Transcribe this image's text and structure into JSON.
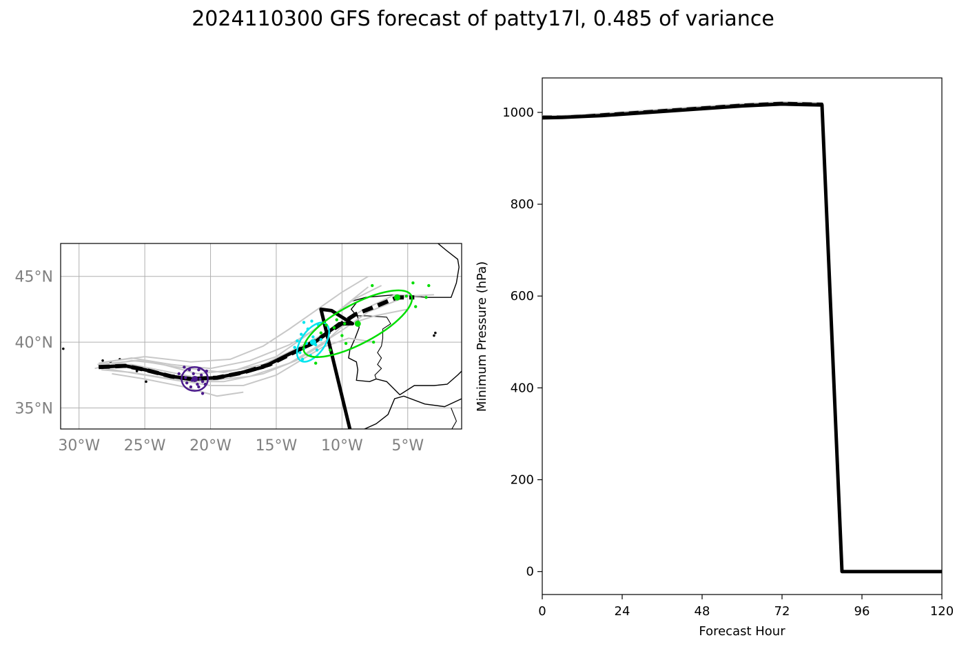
{
  "figure": {
    "title": "2024110300 GFS forecast of patty17l, 0.485 of variance"
  },
  "chart_data": [
    {
      "type": "map",
      "panel": "track",
      "lon_range": [
        -31.4,
        -0.9
      ],
      "lat_range": [
        33.4,
        47.5
      ],
      "x_ticks": [
        -30,
        -25,
        -20,
        -15,
        -10,
        -5
      ],
      "x_tick_labels": [
        "30°W",
        "25°W",
        "20°W",
        "15°W",
        "10°W",
        "5°W"
      ],
      "y_ticks": [
        35,
        40,
        45
      ],
      "y_tick_labels": [
        "35°N",
        "40°N",
        "45°N"
      ],
      "grid": true,
      "colors": {
        "ensemble": "#c8c8c8",
        "track": "#000000",
        "t1": "#4b1a8c",
        "t2": "#00e5ee",
        "t3": "#00dd00",
        "coast": "#000000"
      },
      "mean_track": [
        [
          -28.5,
          38.1
        ],
        [
          -26.5,
          38.2
        ],
        [
          -25,
          37.9
        ],
        [
          -23,
          37.4
        ],
        [
          -21.5,
          37.2
        ],
        [
          -19.5,
          37.3
        ],
        [
          -17.5,
          37.7
        ],
        [
          -15.5,
          38.3
        ],
        [
          -13.5,
          39.3
        ],
        [
          -12,
          40.1
        ],
        [
          -10.5,
          41.1
        ],
        [
          -9,
          42.1
        ],
        [
          -7.5,
          42.7
        ],
        [
          -6.3,
          43.2
        ],
        [
          -5.8,
          43.4
        ],
        [
          -4.5,
          43.4
        ]
      ],
      "deterministic_track": [
        [
          -28.5,
          38.1
        ],
        [
          -26.5,
          38.2
        ],
        [
          -25,
          37.9
        ],
        [
          -23,
          37.4
        ],
        [
          -21.5,
          37.2
        ],
        [
          -19.5,
          37.3
        ],
        [
          -18,
          37.6
        ],
        [
          -16,
          38.1
        ],
        [
          -14,
          39.1
        ],
        [
          -12.2,
          39.9
        ],
        [
          -11,
          40.8
        ],
        [
          -10.2,
          41.4
        ],
        [
          -9.2,
          41.4
        ],
        [
          -10.8,
          42.4
        ],
        [
          -11.6,
          42.5
        ],
        [
          -9.4,
          33.4
        ]
      ],
      "ensemble_tracks": [
        [
          [
            -28.8,
            38.0
          ],
          [
            -26,
            38.6
          ],
          [
            -24,
            38.4
          ],
          [
            -21,
            37.6
          ],
          [
            -18,
            37.9
          ],
          [
            -15,
            38.9
          ],
          [
            -13,
            40.3
          ],
          [
            -11,
            41.8
          ],
          [
            -9,
            43.3
          ],
          [
            -7,
            44.3
          ]
        ],
        [
          [
            -28.5,
            38.2
          ],
          [
            -26,
            38.3
          ],
          [
            -23,
            37.7
          ],
          [
            -20,
            37.1
          ],
          [
            -17,
            37.4
          ],
          [
            -14,
            38.4
          ],
          [
            -12,
            39.6
          ],
          [
            -10,
            40.9
          ],
          [
            -8,
            42.3
          ],
          [
            -5,
            43.5
          ],
          [
            -3,
            43.6
          ]
        ],
        [
          [
            -28,
            38.0
          ],
          [
            -25,
            37.5
          ],
          [
            -22,
            37.0
          ],
          [
            -19,
            37.0
          ],
          [
            -16,
            37.6
          ],
          [
            -13.5,
            38.6
          ],
          [
            -11.5,
            39.8
          ],
          [
            -10,
            41.2
          ],
          [
            -7.5,
            42.0
          ],
          [
            -5,
            42.5
          ]
        ],
        [
          [
            -28.5,
            38.4
          ],
          [
            -26,
            38.8
          ],
          [
            -23,
            38.3
          ],
          [
            -20,
            38.0
          ],
          [
            -17,
            38.6
          ],
          [
            -14,
            39.8
          ],
          [
            -12,
            41.0
          ],
          [
            -10,
            42.6
          ],
          [
            -8,
            44.2
          ]
        ],
        [
          [
            -28.3,
            37.9
          ],
          [
            -26,
            37.7
          ],
          [
            -23,
            37.2
          ],
          [
            -20,
            36.7
          ],
          [
            -17.5,
            36.7
          ],
          [
            -15,
            37.5
          ],
          [
            -13,
            38.7
          ],
          [
            -11.5,
            39.6
          ],
          [
            -9.5,
            40.3
          ],
          [
            -7.5,
            40.0
          ]
        ],
        [
          [
            -28.6,
            38.3
          ],
          [
            -25.5,
            38.6
          ],
          [
            -22.5,
            38.1
          ],
          [
            -19,
            37.7
          ],
          [
            -16,
            38.3
          ],
          [
            -13.5,
            39.5
          ],
          [
            -11,
            40.8
          ],
          [
            -8.5,
            42.4
          ],
          [
            -6,
            43.6
          ],
          [
            -4,
            43.5
          ]
        ],
        [
          [
            -27.5,
            37.6
          ],
          [
            -25,
            37.2
          ],
          [
            -22,
            36.6
          ],
          [
            -19.5,
            35.9
          ],
          [
            -17.5,
            36.2
          ]
        ],
        [
          [
            -28,
            38.5
          ],
          [
            -25,
            38.9
          ],
          [
            -21.5,
            38.5
          ],
          [
            -18.5,
            38.7
          ],
          [
            -16,
            39.7
          ],
          [
            -14,
            41.0
          ],
          [
            -12,
            42.4
          ],
          [
            -10,
            43.8
          ],
          [
            -8,
            45.0
          ]
        ]
      ],
      "markers": [
        {
          "lon": -21.2,
          "lat": 37.2,
          "color": "t1",
          "ellipse": {
            "rx": 1.0,
            "ry": 0.9,
            "rot": 0
          },
          "scatter": [
            [
              -22.0,
              38.1
            ],
            [
              -21.6,
              37.9
            ],
            [
              -20.9,
              37.9
            ],
            [
              -20.3,
              37.8
            ],
            [
              -22.4,
              37.6
            ],
            [
              -21.3,
              37.6
            ],
            [
              -20.7,
              37.5
            ],
            [
              -21.9,
              37.3
            ],
            [
              -21.4,
              37.1
            ],
            [
              -20.6,
              37.0
            ],
            [
              -21.8,
              36.9
            ],
            [
              -21.0,
              36.8
            ],
            [
              -20.4,
              36.8
            ],
            [
              -21.5,
              36.6
            ],
            [
              -20.9,
              36.6
            ],
            [
              -20.6,
              36.1
            ],
            [
              -21.1,
              37.3
            ],
            [
              -20.8,
              37.2
            ]
          ]
        },
        {
          "lon": -12.2,
          "lat": 40.0,
          "color": "t2",
          "ellipse": {
            "rx": 1.7,
            "ry": 0.9,
            "rot": 55
          },
          "scatter": [
            [
              -12.9,
              41.5
            ],
            [
              -12.3,
              41.6
            ],
            [
              -11.8,
              41.3
            ],
            [
              -12.6,
              41.0
            ],
            [
              -13.1,
              40.6
            ],
            [
              -12.2,
              40.4
            ],
            [
              -11.6,
              40.2
            ],
            [
              -13.4,
              40.1
            ],
            [
              -12.7,
              39.9
            ],
            [
              -12.0,
              39.8
            ],
            [
              -13.6,
              39.6
            ],
            [
              -12.9,
              39.5
            ],
            [
              -11.9,
              39.4
            ],
            [
              -13.2,
              39.2
            ],
            [
              -12.4,
              39.0
            ],
            [
              -11.9,
              38.9
            ],
            [
              -13.0,
              38.7
            ]
          ]
        },
        {
          "lon": -8.8,
          "lat": 41.4,
          "color": "t3",
          "ellipse": {
            "rx": 4.6,
            "ry": 1.5,
            "rot": 28
          },
          "scatter": [
            [
              -7.7,
              44.3
            ],
            [
              -4.6,
              44.5
            ],
            [
              -3.4,
              44.3
            ],
            [
              -5.1,
              43.5
            ],
            [
              -3.6,
              43.4
            ],
            [
              -4.4,
              42.7
            ],
            [
              -10.4,
              41.7
            ],
            [
              -9.8,
              41.4
            ],
            [
              -11.2,
              41.3
            ],
            [
              -10.6,
              41.1
            ],
            [
              -11.6,
              40.7
            ],
            [
              -10.0,
              40.5
            ],
            [
              -7.6,
              40.0
            ],
            [
              -9.7,
              39.9
            ],
            [
              -10.9,
              39.4
            ],
            [
              -12.0,
              38.4
            ]
          ]
        },
        {
          "lon": -5.8,
          "lat": 43.4,
          "color": "t3",
          "ellipse": null,
          "scatter": []
        }
      ]
    },
    {
      "type": "line",
      "panel": "pressure",
      "xlabel": "Forecast Hour",
      "ylabel": "Minimum Pressure (hPa)",
      "xlim": [
        0,
        120
      ],
      "ylim": [
        -50,
        1075
      ],
      "x_ticks": [
        0,
        24,
        48,
        72,
        96,
        120
      ],
      "y_ticks": [
        0,
        200,
        400,
        600,
        800,
        1000
      ],
      "grid": false,
      "x": [
        0,
        6,
        12,
        18,
        24,
        30,
        36,
        42,
        48,
        54,
        60,
        66,
        72,
        78,
        84,
        90,
        96,
        102,
        108,
        114,
        120
      ],
      "series": [
        {
          "values": [
            988,
            989,
            991,
            993,
            996,
            999,
            1002,
            1005,
            1008,
            1011,
            1014,
            1016,
            1018,
            1017,
            1016,
            0,
            0,
            0,
            0,
            0,
            0
          ],
          "role": "deterministic",
          "style": "solid"
        },
        {
          "values": [
            990,
            990,
            992,
            995,
            998,
            1001,
            1004,
            1007,
            1010,
            1013,
            1016,
            1018,
            1020,
            1019,
            1018,
            0,
            0,
            0,
            0,
            0,
            0
          ],
          "role": "mean",
          "style": "dashed"
        },
        {
          "values": [
            992,
            992,
            994,
            997,
            1000,
            1003,
            1006,
            1009,
            1012,
            1015,
            1018,
            1020,
            1022,
            1021,
            1020,
            0,
            0,
            0,
            0,
            0,
            0
          ],
          "role": "ensemble",
          "style": "solid"
        }
      ]
    }
  ]
}
